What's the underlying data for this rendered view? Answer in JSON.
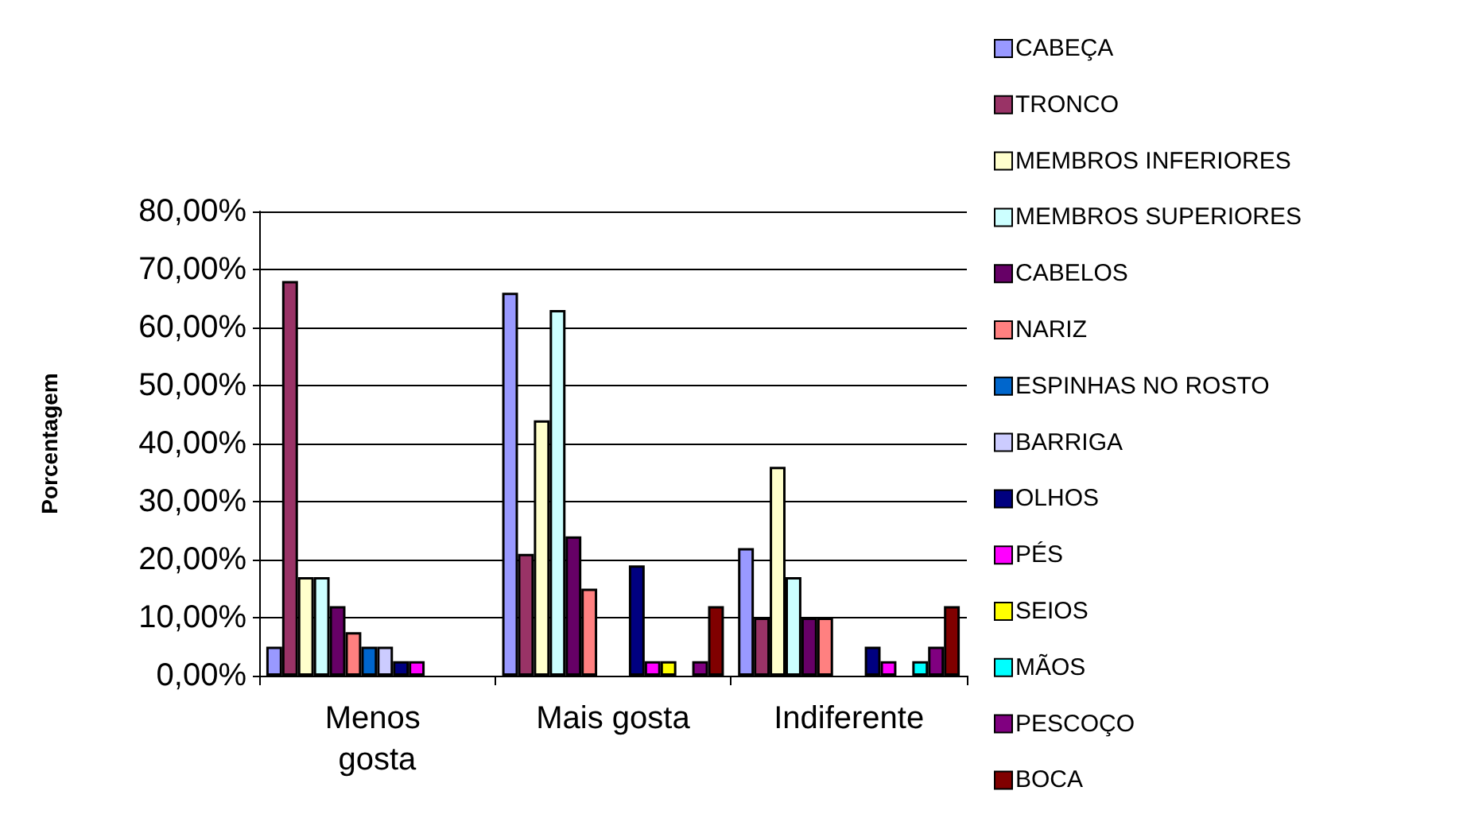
{
  "chart_data": {
    "type": "bar",
    "ylabel": "Porcentagem",
    "categories": [
      "Menos gosta",
      "Mais gosta",
      "Indiferente"
    ],
    "series": [
      {
        "name": "CABEÇA",
        "color": "#9999ff",
        "values": [
          5,
          66,
          22
        ]
      },
      {
        "name": "TRONCO",
        "color": "#993366",
        "values": [
          68,
          21,
          10
        ]
      },
      {
        "name": "MEMBROS INFERIORES",
        "color": "#ffffcc",
        "values": [
          17,
          44,
          36
        ]
      },
      {
        "name": "MEMBROS SUPERIORES",
        "color": "#ccffff",
        "values": [
          17,
          63,
          17
        ]
      },
      {
        "name": "CABELOS",
        "color": "#660066",
        "values": [
          12,
          24,
          10
        ]
      },
      {
        "name": "NARIZ",
        "color": "#ff8080",
        "values": [
          7.5,
          15,
          10
        ]
      },
      {
        "name": "ESPINHAS NO ROSTO",
        "color": "#0066cc",
        "values": [
          5,
          null,
          null
        ]
      },
      {
        "name": "BARRIGA",
        "color": "#ccccff",
        "values": [
          5,
          null,
          null
        ]
      },
      {
        "name": "OLHOS",
        "color": "#000080",
        "values": [
          2.5,
          19,
          5
        ]
      },
      {
        "name": "PÉS",
        "color": "#ff00ff",
        "values": [
          2.5,
          2.5,
          2.5
        ]
      },
      {
        "name": "SEIOS",
        "color": "#ffff00",
        "values": [
          null,
          2.5,
          null
        ]
      },
      {
        "name": "MÃOS",
        "color": "#00ffff",
        "values": [
          null,
          null,
          2.5
        ]
      },
      {
        "name": "PESCOÇO",
        "color": "#800080",
        "values": [
          null,
          2.5,
          5
        ]
      },
      {
        "name": "BOCA",
        "color": "#800000",
        "values": [
          null,
          12,
          12
        ]
      }
    ],
    "ylim": [
      0,
      80
    ],
    "yticks": [
      {
        "value": 0,
        "label": "0,00%"
      },
      {
        "value": 10,
        "label": "10,00%"
      },
      {
        "value": 20,
        "label": "20,00%"
      },
      {
        "value": 30,
        "label": "30,00%"
      },
      {
        "value": 40,
        "label": "40,00%"
      },
      {
        "value": 50,
        "label": "50,00%"
      },
      {
        "value": 60,
        "label": "60,00%"
      },
      {
        "value": 70,
        "label": "70,00%"
      },
      {
        "value": 80,
        "label": "80,00%"
      }
    ],
    "grid": "y",
    "legend": "right"
  }
}
